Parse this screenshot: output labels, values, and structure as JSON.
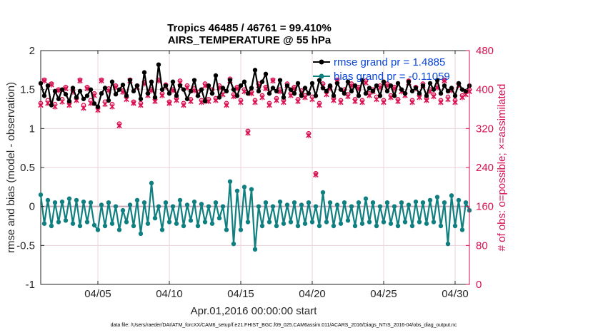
{
  "chart_data": {
    "type": "line",
    "title_line1": "Tropics 46485 / 46761 = 99.410%",
    "title_line2": "AIRS_TEMPERATURE @ 55 hPa",
    "xlabel": "Apr.01,2016 00:00:00 start",
    "ylabel_left": "rmse and bias (model - observation)",
    "ylabel_right": "# of obs: o=possible; ×=assimilated",
    "xlim": [
      1,
      31
    ],
    "ylim_left": [
      -1,
      2
    ],
    "ylim_right": [
      0,
      480
    ],
    "x_ticks": [
      5,
      10,
      15,
      20,
      25,
      30
    ],
    "x_tick_labels": [
      "04/05",
      "04/10",
      "04/15",
      "04/20",
      "04/25",
      "04/30"
    ],
    "y_left_ticks": [
      -1,
      -0.5,
      0,
      0.5,
      1,
      1.5,
      2
    ],
    "y_left_tick_labels": [
      "-1",
      "-0.5",
      "0",
      "0.5",
      "1",
      "1.5",
      "2"
    ],
    "y_right_ticks": [
      0,
      80,
      160,
      240,
      320,
      400,
      480
    ],
    "y_right_tick_labels": [
      "0",
      "80",
      "160",
      "240",
      "320",
      "400",
      "480"
    ],
    "grid": true,
    "legend_position": "top-right",
    "legend": [
      {
        "name": "rmse",
        "label": "rmse grand pr = 1.4885"
      },
      {
        "name": "bias",
        "label": "bias grand pr = -0.11059"
      }
    ],
    "colors": {
      "rmse": "#000000",
      "bias": "#0f7f7f",
      "obs": "#d9104f",
      "legend_text": "#0b46d6",
      "zero_line": "#c8a8b8"
    },
    "series": [
      {
        "name": "rmse",
        "x": [
          1.0,
          1.25,
          1.5,
          1.75,
          2.0,
          2.25,
          2.5,
          2.75,
          3.0,
          3.25,
          3.5,
          3.75,
          4.0,
          4.25,
          4.5,
          4.75,
          5.0,
          5.25,
          5.5,
          5.75,
          6.0,
          6.25,
          6.5,
          6.75,
          7.0,
          7.25,
          7.5,
          7.75,
          8.0,
          8.25,
          8.5,
          8.75,
          9.0,
          9.25,
          9.5,
          9.75,
          10.0,
          10.25,
          10.5,
          10.75,
          11.0,
          11.25,
          11.5,
          11.75,
          12.0,
          12.25,
          12.5,
          12.75,
          13.0,
          13.25,
          13.5,
          13.75,
          14.0,
          14.25,
          14.5,
          14.75,
          15.0,
          15.25,
          15.5,
          15.75,
          16.0,
          16.25,
          16.5,
          16.75,
          17.0,
          17.25,
          17.5,
          17.75,
          18.0,
          18.25,
          18.5,
          18.75,
          19.0,
          19.25,
          19.5,
          19.75,
          20.0,
          20.25,
          20.5,
          20.75,
          21.0,
          21.25,
          21.5,
          21.75,
          22.0,
          22.25,
          22.5,
          22.75,
          23.0,
          23.25,
          23.5,
          23.75,
          24.0,
          24.25,
          24.5,
          24.75,
          25.0,
          25.25,
          25.5,
          25.75,
          26.0,
          26.25,
          26.5,
          26.75,
          27.0,
          27.25,
          27.5,
          27.75,
          28.0,
          28.25,
          28.5,
          28.75,
          29.0,
          29.25,
          29.5,
          29.75,
          30.0,
          30.25,
          30.5,
          30.75,
          31.0
        ],
        "values": [
          1.58,
          1.42,
          1.55,
          1.3,
          1.48,
          1.38,
          1.5,
          1.44,
          1.35,
          1.52,
          1.4,
          1.48,
          1.38,
          1.42,
          1.5,
          1.32,
          1.28,
          1.45,
          1.52,
          1.36,
          1.6,
          1.44,
          1.5,
          1.56,
          1.42,
          1.62,
          1.48,
          1.55,
          1.38,
          1.72,
          1.45,
          1.6,
          1.4,
          1.82,
          1.5,
          1.55,
          1.45,
          1.6,
          1.42,
          1.55,
          1.5,
          1.38,
          1.48,
          1.62,
          1.42,
          1.5,
          1.35,
          1.55,
          1.45,
          1.68,
          1.4,
          1.52,
          1.48,
          1.62,
          1.5,
          1.42,
          1.55,
          1.6,
          1.45,
          1.52,
          1.75,
          1.48,
          1.6,
          1.7,
          1.45,
          1.52,
          1.48,
          1.62,
          1.4,
          1.55,
          1.5,
          1.45,
          1.58,
          1.42,
          1.52,
          1.45,
          1.58,
          1.42,
          1.62,
          1.52,
          1.48,
          1.55,
          1.42,
          1.58,
          1.5,
          1.45,
          1.6,
          1.48,
          1.55,
          1.42,
          1.62,
          1.45,
          1.52,
          1.48,
          1.55,
          1.42,
          1.6,
          1.48,
          1.55,
          1.42,
          1.58,
          1.5,
          1.45,
          1.6,
          1.48,
          1.52,
          1.45,
          1.55,
          1.42,
          1.58,
          1.5,
          1.62,
          1.45,
          1.55,
          1.48,
          1.52,
          1.42,
          1.58,
          1.5,
          1.48,
          1.55
        ]
      },
      {
        "name": "bias",
        "x": [
          1.0,
          1.25,
          1.5,
          1.75,
          2.0,
          2.25,
          2.5,
          2.75,
          3.0,
          3.25,
          3.5,
          3.75,
          4.0,
          4.25,
          4.5,
          4.75,
          5.0,
          5.25,
          5.5,
          5.75,
          6.0,
          6.25,
          6.5,
          6.75,
          7.0,
          7.25,
          7.5,
          7.75,
          8.0,
          8.25,
          8.5,
          8.75,
          9.0,
          9.25,
          9.5,
          9.75,
          10.0,
          10.25,
          10.5,
          10.75,
          11.0,
          11.25,
          11.5,
          11.75,
          12.0,
          12.25,
          12.5,
          12.75,
          13.0,
          13.25,
          13.5,
          13.75,
          14.0,
          14.25,
          14.5,
          14.75,
          15.0,
          15.25,
          15.5,
          15.75,
          16.0,
          16.25,
          16.5,
          16.75,
          17.0,
          17.25,
          17.5,
          17.75,
          18.0,
          18.25,
          18.5,
          18.75,
          19.0,
          19.25,
          19.5,
          19.75,
          20.0,
          20.25,
          20.5,
          20.75,
          21.0,
          21.25,
          21.5,
          21.75,
          22.0,
          22.25,
          22.5,
          22.75,
          23.0,
          23.25,
          23.5,
          23.75,
          24.0,
          24.25,
          24.5,
          24.75,
          25.0,
          25.25,
          25.5,
          25.75,
          26.0,
          26.25,
          26.5,
          26.75,
          27.0,
          27.25,
          27.5,
          27.75,
          28.0,
          28.25,
          28.5,
          28.75,
          29.0,
          29.25,
          29.5,
          29.75,
          30.0,
          30.25,
          30.5,
          30.75,
          31.0
        ],
        "values": [
          0.15,
          -0.22,
          0.08,
          -0.25,
          0.05,
          -0.2,
          0.06,
          -0.18,
          0.1,
          -0.22,
          0.08,
          -0.25,
          0.06,
          -0.2,
          0.05,
          -0.24,
          -0.3,
          0.02,
          -0.25,
          0.05,
          -0.22,
          0.0,
          -0.3,
          -0.05,
          -0.2,
          0.02,
          -0.25,
          0.08,
          -0.35,
          0.05,
          -0.22,
          0.3,
          -0.15,
          0.0,
          -0.3,
          0.05,
          -0.2,
          0.0,
          -0.22,
          0.08,
          -0.25,
          0.02,
          -0.18,
          0.06,
          -0.25,
          0.03,
          -0.2,
          0.0,
          -0.22,
          0.05,
          -0.15,
          0.0,
          -0.3,
          0.32,
          -0.48,
          0.2,
          -0.3,
          0.25,
          -0.2,
          0.22,
          -0.55,
          0.0,
          -0.25,
          0.05,
          -0.2,
          0.0,
          -0.25,
          0.06,
          -0.22,
          0.02,
          -0.2,
          0.05,
          -0.25,
          0.02,
          -0.22,
          0.05,
          -0.2,
          0.0,
          -0.25,
          0.18,
          -0.2,
          0.05,
          -0.25,
          0.02,
          -0.22,
          0.05,
          -0.18,
          0.0,
          -0.25,
          0.05,
          -0.22,
          0.1,
          -0.2,
          0.05,
          -0.25,
          0.0,
          -0.2,
          0.05,
          -0.22,
          0.0,
          -0.25,
          0.05,
          -0.2,
          0.02,
          -0.25,
          0.06,
          -0.2,
          0.05,
          -0.22,
          0.08,
          -0.2,
          0.12,
          -0.25,
          0.05,
          -0.48,
          0.14,
          -0.25,
          0.08,
          -0.3,
          0.05,
          -0.05
        ]
      },
      {
        "name": "obs_possible",
        "x": [
          1.0,
          1.25,
          1.5,
          1.75,
          2.0,
          2.25,
          2.5,
          2.75,
          3.0,
          3.25,
          3.5,
          3.75,
          4.0,
          4.25,
          4.5,
          4.75,
          5.0,
          5.25,
          5.5,
          5.75,
          6.0,
          6.25,
          6.5,
          6.75,
          7.0,
          7.25,
          7.5,
          7.75,
          8.0,
          8.25,
          8.5,
          8.75,
          9.0,
          9.25,
          9.5,
          9.75,
          10.0,
          10.25,
          10.5,
          10.75,
          11.0,
          11.25,
          11.5,
          11.75,
          12.0,
          12.25,
          12.5,
          12.75,
          13.0,
          13.25,
          13.5,
          13.75,
          14.0,
          14.25,
          14.5,
          14.75,
          15.0,
          15.25,
          15.5,
          15.75,
          16.0,
          16.25,
          16.5,
          16.75,
          17.0,
          17.25,
          17.5,
          17.75,
          18.0,
          18.25,
          18.5,
          18.75,
          19.0,
          19.25,
          19.5,
          19.75,
          20.0,
          20.25,
          20.5,
          20.75,
          21.0,
          21.25,
          21.5,
          21.75,
          22.0,
          22.25,
          22.5,
          22.75,
          23.0,
          23.25,
          23.5,
          23.75,
          24.0,
          24.25,
          24.5,
          24.75,
          25.0,
          25.25,
          25.5,
          25.75,
          26.0,
          26.25,
          26.5,
          26.75,
          27.0,
          27.25,
          27.5,
          27.75,
          28.0,
          28.25,
          28.5,
          28.75,
          29.0,
          29.25,
          29.5,
          29.75,
          30.0,
          30.25,
          30.5,
          30.75,
          31.0
        ],
        "values": [
          372,
          420,
          378,
          412,
          370,
          400,
          380,
          405,
          372,
          398,
          382,
          420,
          368,
          405,
          378,
          392,
          362,
          420,
          375,
          402,
          370,
          408,
          330,
          398,
          385,
          420,
          375,
          408,
          372,
          415,
          392,
          400,
          380,
          420,
          392,
          410,
          375,
          400,
          382,
          418,
          372,
          408,
          380,
          402,
          395,
          378,
          412,
          380,
          400,
          382,
          408,
          395,
          372,
          422,
          390,
          405,
          378,
          400,
          315,
          395,
          378,
          412,
          388,
          405,
          372,
          420,
          382,
          400,
          378,
          412,
          392,
          405,
          380,
          398,
          388,
          310,
          385,
          228,
          372,
          412,
          395,
          405,
          382,
          420,
          378,
          400,
          390,
          412,
          380,
          405,
          378,
          418,
          392,
          400,
          385,
          408,
          378,
          412,
          388,
          405,
          380,
          400,
          392,
          418,
          378,
          405,
          388,
          412,
          382,
          400,
          390,
          408,
          378,
          420,
          385,
          402,
          378,
          412,
          388,
          395,
          400
        ]
      },
      {
        "name": "obs_assimilated",
        "x": [
          1.0,
          1.25,
          1.5,
          1.75,
          2.0,
          2.25,
          2.5,
          2.75,
          3.0,
          3.25,
          3.5,
          3.75,
          4.0,
          4.25,
          4.5,
          4.75,
          5.0,
          5.25,
          5.5,
          5.75,
          6.0,
          6.25,
          6.5,
          6.75,
          7.0,
          7.25,
          7.5,
          7.75,
          8.0,
          8.25,
          8.5,
          8.75,
          9.0,
          9.25,
          9.5,
          9.75,
          10.0,
          10.25,
          10.5,
          10.75,
          11.0,
          11.25,
          11.5,
          11.75,
          12.0,
          12.25,
          12.5,
          12.75,
          13.0,
          13.25,
          13.5,
          13.75,
          14.0,
          14.25,
          14.5,
          14.75,
          15.0,
          15.25,
          15.5,
          15.75,
          16.0,
          16.25,
          16.5,
          16.75,
          17.0,
          17.25,
          17.5,
          17.75,
          18.0,
          18.25,
          18.5,
          18.75,
          19.0,
          19.25,
          19.5,
          19.75,
          20.0,
          20.25,
          20.5,
          20.75,
          21.0,
          21.25,
          21.5,
          21.75,
          22.0,
          22.25,
          22.5,
          22.75,
          23.0,
          23.25,
          23.5,
          23.75,
          24.0,
          24.25,
          24.5,
          24.75,
          25.0,
          25.25,
          25.5,
          25.75,
          26.0,
          26.25,
          26.5,
          26.75,
          27.0,
          27.25,
          27.5,
          27.75,
          28.0,
          28.25,
          28.5,
          28.75,
          29.0,
          29.25,
          29.5,
          29.75,
          30.0,
          30.25,
          30.5,
          30.75,
          31.0
        ],
        "values": [
          368,
          418,
          372,
          410,
          365,
          398,
          375,
          402,
          368,
          395,
          378,
          418,
          362,
          402,
          372,
          388,
          358,
          418,
          370,
          398,
          365,
          405,
          326,
          395,
          380,
          418,
          372,
          405,
          368,
          412,
          388,
          398,
          376,
          418,
          388,
          406,
          372,
          398,
          378,
          414,
          368,
          404,
          376,
          398,
          390,
          374,
          408,
          376,
          396,
          378,
          404,
          390,
          368,
          418,
          386,
          402,
          374,
          396,
          311,
          392,
          374,
          408,
          384,
          402,
          368,
          418,
          378,
          396,
          374,
          408,
          388,
          402,
          376,
          394,
          384,
          306,
          380,
          225,
          368,
          408,
          390,
          402,
          378,
          418,
          374,
          396,
          386,
          408,
          376,
          402,
          374,
          414,
          388,
          396,
          380,
          404,
          374,
          408,
          384,
          402,
          376,
          396,
          388,
          414,
          374,
          402,
          384,
          408,
          378,
          396,
          386,
          404,
          374,
          418,
          380,
          398,
          374,
          408,
          384,
          390,
          396
        ]
      }
    ]
  },
  "footnote": "data file: /Users/raeder/DAI/ATM_forcXX/CAM6_setup/f.e21.FHIST_BGC.f09_025.CAM6assim.011/ACARS_2016/Diags_NTrS_2016-04/obs_diag_output.nc"
}
